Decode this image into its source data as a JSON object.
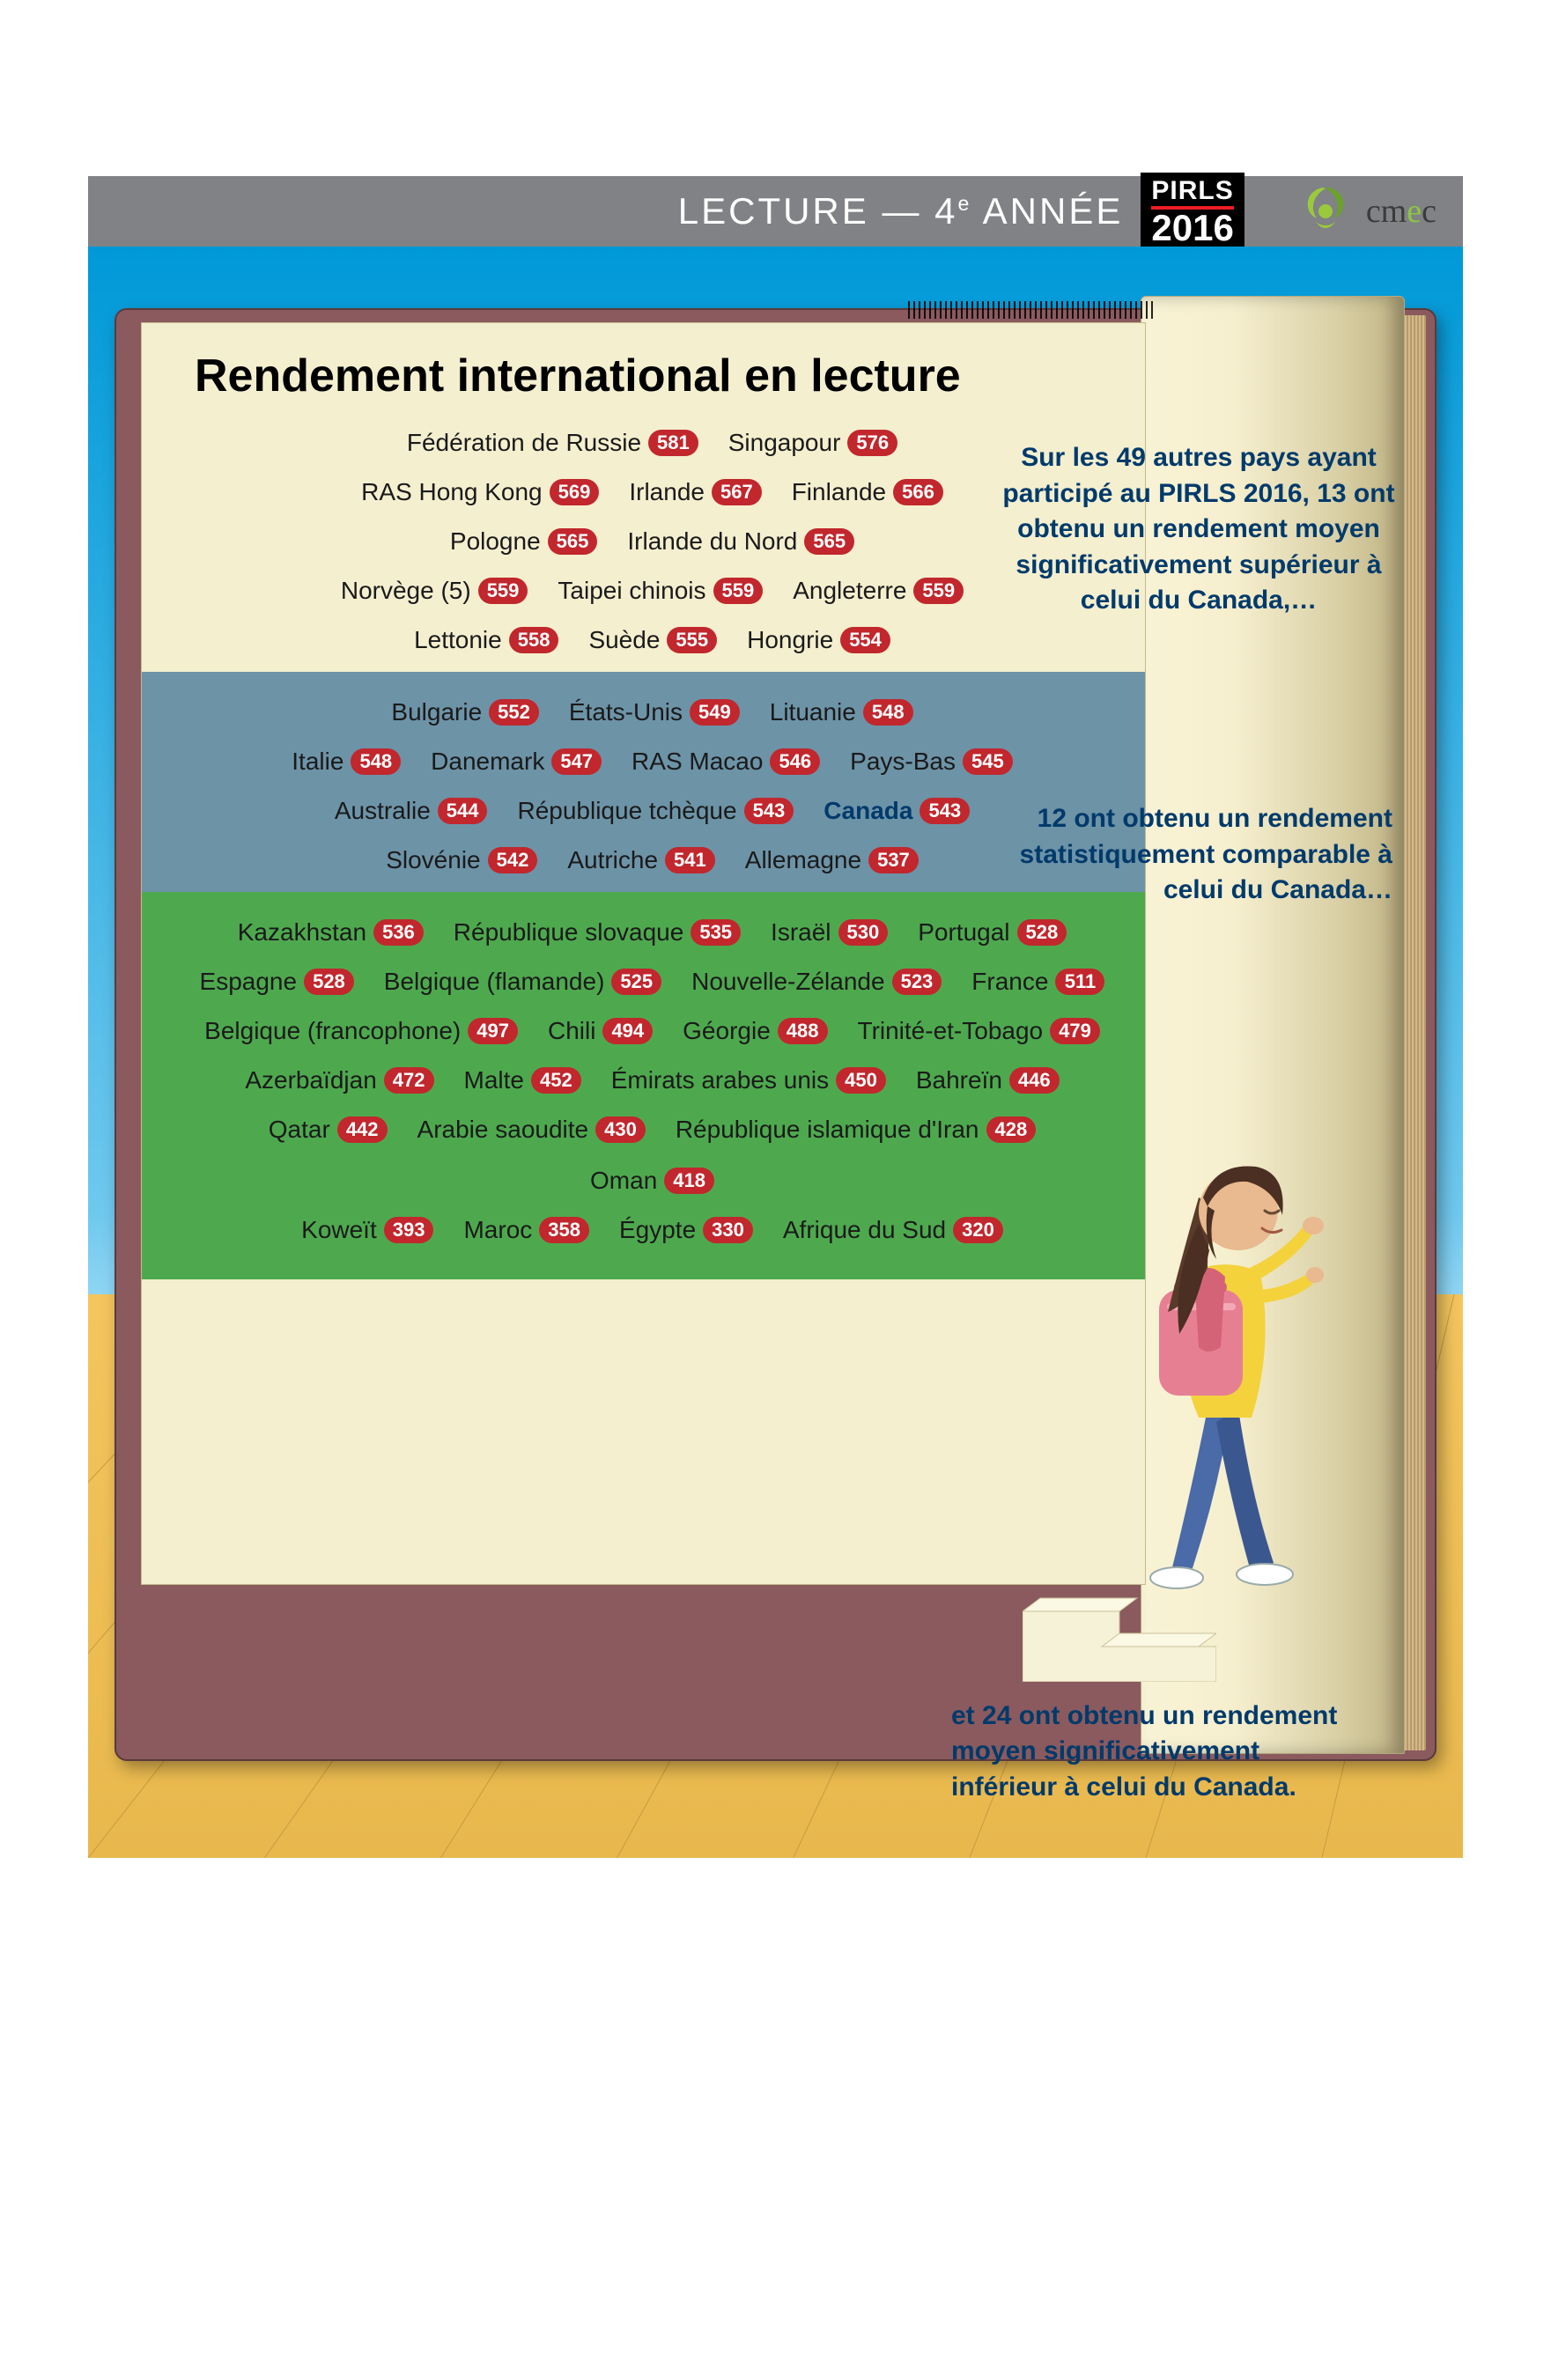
{
  "header": {
    "title_html": "LECTURE — 4<sup>e</sup> ANNÉE",
    "pirls_top": "PIRLS",
    "pirls_year": "2016",
    "org": "cmec"
  },
  "colors": {
    "bar": "#808285",
    "pirls_underline": "#ed1c24",
    "sky_top": "#0099d8",
    "floor": "#f4c55e",
    "paper": "#f4efcf",
    "mid_band": "#6d93a7",
    "bot_band": "#4ea94e",
    "pill": "#c1272d",
    "caption": "#003a6b"
  },
  "title": "Rendement international en lecture",
  "captions": {
    "c1": "Sur les 49 autres pays ayant participé au PIRLS 2016, 13 ont obtenu un rendement moyen significativement supérieur à celui du Canada,…",
    "c2": "12 ont obtenu un rendement statistiquement comparable à celui du Canada…",
    "c3": "et 24 ont obtenu un rendement moyen significativement inférieur à celui du Canada."
  },
  "sections": [
    {
      "band": "top",
      "rows": [
        [
          {
            "label": "Fédération de Russie",
            "score": 581
          },
          {
            "label": "Singapour",
            "score": 576
          }
        ],
        [
          {
            "label": "RAS Hong Kong",
            "score": 569
          },
          {
            "label": "Irlande",
            "score": 567
          },
          {
            "label": "Finlande",
            "score": 566
          }
        ],
        [
          {
            "label": "Pologne",
            "score": 565
          },
          {
            "label": "Irlande du Nord",
            "score": 565
          }
        ],
        [
          {
            "label": "Norvège (5)",
            "score": 559
          },
          {
            "label": "Taipei chinois",
            "score": 559
          },
          {
            "label": "Angleterre",
            "score": 559
          }
        ],
        [
          {
            "label": "Lettonie",
            "score": 558
          },
          {
            "label": "Suède",
            "score": 555
          },
          {
            "label": "Hongrie",
            "score": 554
          }
        ]
      ]
    },
    {
      "band": "mid",
      "rows": [
        [
          {
            "label": "Bulgarie",
            "score": 552
          },
          {
            "label": "États-Unis",
            "score": 549
          },
          {
            "label": "Lituanie",
            "score": 548
          }
        ],
        [
          {
            "label": "Italie",
            "score": 548
          },
          {
            "label": "Danemark",
            "score": 547
          },
          {
            "label": "RAS Macao",
            "score": 546
          },
          {
            "label": "Pays-Bas",
            "score": 545
          }
        ],
        [
          {
            "label": "Australie",
            "score": 544
          },
          {
            "label": "République tchèque",
            "score": 543
          },
          {
            "label": "Canada",
            "score": 543,
            "highlight": true
          }
        ],
        [
          {
            "label": "Slovénie",
            "score": 542
          },
          {
            "label": "Autriche",
            "score": 541
          },
          {
            "label": "Allemagne",
            "score": 537
          }
        ]
      ]
    },
    {
      "band": "bot",
      "rows": [
        [
          {
            "label": "Kazakhstan",
            "score": 536
          },
          {
            "label": "République slovaque",
            "score": 535
          },
          {
            "label": "Israël",
            "score": 530
          },
          {
            "label": "Portugal",
            "score": 528
          }
        ],
        [
          {
            "label": "Espagne",
            "score": 528
          },
          {
            "label": "Belgique (flamande)",
            "score": 525
          },
          {
            "label": "Nouvelle-Zélande",
            "score": 523
          },
          {
            "label": "France",
            "score": 511
          }
        ],
        [
          {
            "label": "Belgique (francophone)",
            "score": 497
          },
          {
            "label": "Chili",
            "score": 494
          },
          {
            "label": "Géorgie",
            "score": 488
          },
          {
            "label": "Trinité-et-Tobago",
            "score": 479
          }
        ],
        [
          {
            "label": "Azerbaïdjan",
            "score": 472
          },
          {
            "label": "Malte",
            "score": 452
          },
          {
            "label": "Émirats arabes unis",
            "score": 450
          },
          {
            "label": "Bahreïn",
            "score": 446
          }
        ],
        [
          {
            "label": "Qatar",
            "score": 442
          },
          {
            "label": "Arabie saoudite",
            "score": 430
          },
          {
            "label": "République islamique d'Iran",
            "score": 428
          },
          {
            "label": "Oman",
            "score": 418
          }
        ],
        [
          {
            "label": "Koweït",
            "score": 393
          },
          {
            "label": "Maroc",
            "score": 358
          },
          {
            "label": "Égypte",
            "score": 330
          },
          {
            "label": "Afrique du Sud",
            "score": 320
          }
        ]
      ]
    }
  ]
}
